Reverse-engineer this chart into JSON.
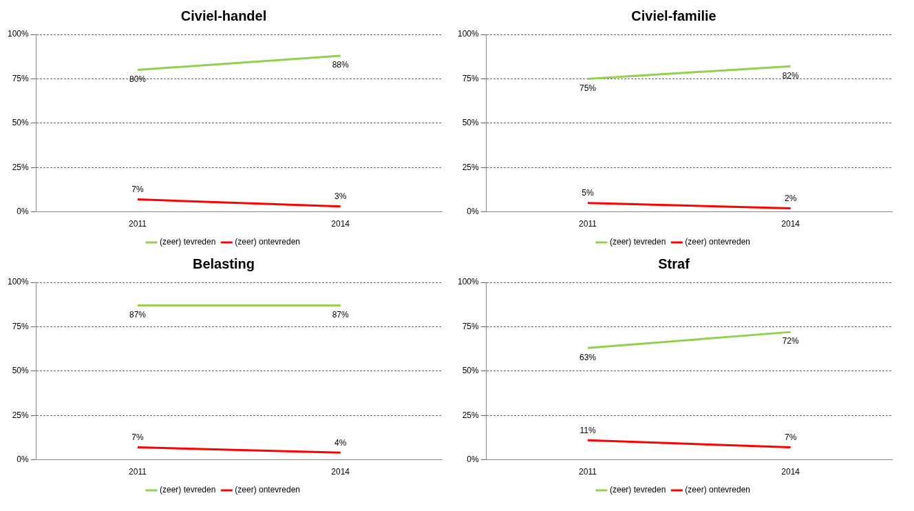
{
  "chart_data": [
    {
      "type": "line",
      "title": "Civiel-handel",
      "categories": [
        "2011",
        "2014"
      ],
      "ylim": [
        0,
        100
      ],
      "yticks": [
        {
          "value": 0,
          "label": "0%"
        },
        {
          "value": 25,
          "label": "25%"
        },
        {
          "value": 50,
          "label": "50%"
        },
        {
          "value": 75,
          "label": "75%"
        },
        {
          "value": 100,
          "label": "100%"
        }
      ],
      "grid": "y",
      "legend": "bottom",
      "marker": "none",
      "line_style": "solid",
      "series": [
        {
          "name": "(zeer) tevreden",
          "color": "#92d050",
          "values": [
            80,
            88
          ],
          "value_labels": [
            "80%",
            "88%"
          ]
        },
        {
          "name": "(zeer) ontevreden",
          "color": "#ff0000",
          "values": [
            7,
            3
          ],
          "value_labels": [
            "7%",
            "3%"
          ]
        }
      ]
    },
    {
      "type": "line",
      "title": "Civiel-familie",
      "categories": [
        "2011",
        "2014"
      ],
      "ylim": [
        0,
        100
      ],
      "yticks": [
        {
          "value": 0,
          "label": "0%"
        },
        {
          "value": 25,
          "label": "25%"
        },
        {
          "value": 50,
          "label": "50%"
        },
        {
          "value": 75,
          "label": "75%"
        },
        {
          "value": 100,
          "label": "100%"
        }
      ],
      "grid": "y",
      "legend": "bottom",
      "marker": "none",
      "line_style": "solid",
      "series": [
        {
          "name": "(zeer) tevreden",
          "color": "#92d050",
          "values": [
            75,
            82
          ],
          "value_labels": [
            "75%",
            "82%"
          ]
        },
        {
          "name": "(zeer) ontevreden",
          "color": "#ff0000",
          "values": [
            5,
            2
          ],
          "value_labels": [
            "5%",
            "2%"
          ]
        }
      ]
    },
    {
      "type": "line",
      "title": "Belasting",
      "categories": [
        "2011",
        "2014"
      ],
      "ylim": [
        0,
        100
      ],
      "yticks": [
        {
          "value": 0,
          "label": "0%"
        },
        {
          "value": 25,
          "label": "25%"
        },
        {
          "value": 50,
          "label": "50%"
        },
        {
          "value": 75,
          "label": "75%"
        },
        {
          "value": 100,
          "label": "100%"
        }
      ],
      "grid": "y",
      "legend": "bottom",
      "marker": "none",
      "line_style": "solid",
      "series": [
        {
          "name": "(zeer) tevreden",
          "color": "#92d050",
          "values": [
            87,
            87
          ],
          "value_labels": [
            "87%",
            "87%"
          ]
        },
        {
          "name": "(zeer) ontevreden",
          "color": "#ff0000",
          "values": [
            7,
            4
          ],
          "value_labels": [
            "7%",
            "4%"
          ]
        }
      ]
    },
    {
      "type": "line",
      "title": "Straf",
      "categories": [
        "2011",
        "2014"
      ],
      "ylim": [
        0,
        100
      ],
      "yticks": [
        {
          "value": 0,
          "label": "0%"
        },
        {
          "value": 25,
          "label": "25%"
        },
        {
          "value": 50,
          "label": "50%"
        },
        {
          "value": 75,
          "label": "75%"
        },
        {
          "value": 100,
          "label": "100%"
        }
      ],
      "grid": "y",
      "legend": "bottom",
      "marker": "none",
      "line_style": "solid",
      "series": [
        {
          "name": "(zeer) tevreden",
          "color": "#92d050",
          "values": [
            63,
            72
          ],
          "value_labels": [
            "63%",
            "72%"
          ]
        },
        {
          "name": "(zeer) ontevreden",
          "color": "#ff0000",
          "values": [
            11,
            7
          ],
          "value_labels": [
            "11%",
            "7%"
          ]
        }
      ]
    }
  ]
}
